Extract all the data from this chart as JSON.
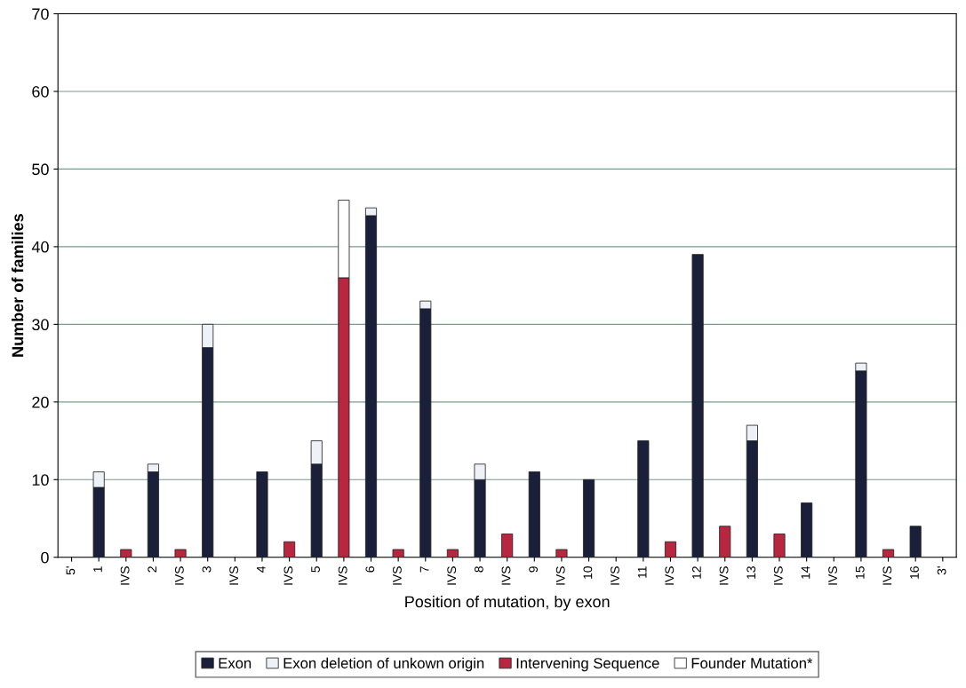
{
  "chart_data": {
    "type": "bar",
    "stacked": true,
    "xlabel": "Position of mutation, by exon",
    "ylabel": "Number of families",
    "categories": [
      "5'",
      "1",
      "IVS",
      "2",
      "IVS",
      "3",
      "IVS",
      "4",
      "IVS",
      "5",
      "IVS",
      "6",
      "IVS",
      "7",
      "IVS",
      "8",
      "IVS",
      "9",
      "IVS",
      "10",
      "IVS",
      "11",
      "IVS",
      "12",
      "IVS",
      "13",
      "IVS",
      "14",
      "IVS",
      "15",
      "IVS",
      "16",
      "3'"
    ],
    "series": [
      {
        "name": "Exon",
        "color": "#1a1f3a",
        "values": [
          null,
          9,
          null,
          11,
          null,
          27,
          null,
          11,
          null,
          12,
          null,
          44,
          null,
          32,
          null,
          10,
          null,
          11,
          null,
          10,
          null,
          15,
          null,
          39,
          null,
          15,
          null,
          7,
          null,
          24,
          null,
          4,
          null
        ]
      },
      {
        "name": "Exon deletion of unkown origin",
        "color": "#eef2f8",
        "values": [
          null,
          2,
          null,
          1,
          null,
          3,
          null,
          null,
          null,
          3,
          null,
          1,
          null,
          1,
          null,
          2,
          null,
          null,
          null,
          null,
          null,
          null,
          null,
          null,
          null,
          2,
          null,
          null,
          null,
          1,
          null,
          null,
          null
        ]
      },
      {
        "name": "Intervening Sequence",
        "color": "#b8273f",
        "values": [
          null,
          null,
          1,
          null,
          1,
          null,
          null,
          null,
          2,
          null,
          36,
          null,
          1,
          null,
          1,
          null,
          3,
          null,
          1,
          null,
          null,
          null,
          2,
          null,
          4,
          null,
          3,
          null,
          null,
          null,
          1,
          null,
          null
        ]
      },
      {
        "name": "Founder Mutation*",
        "color": "#ffffff",
        "values": [
          null,
          null,
          null,
          null,
          null,
          null,
          null,
          null,
          null,
          null,
          10,
          null,
          null,
          null,
          null,
          null,
          null,
          null,
          null,
          null,
          null,
          null,
          null,
          null,
          null,
          null,
          null,
          null,
          null,
          null,
          null,
          null,
          null
        ]
      }
    ],
    "ylim": [
      0,
      70
    ],
    "yticks": [
      0,
      10,
      20,
      30,
      40,
      50,
      60,
      70
    ],
    "grid": "y",
    "legend": "bottom"
  }
}
